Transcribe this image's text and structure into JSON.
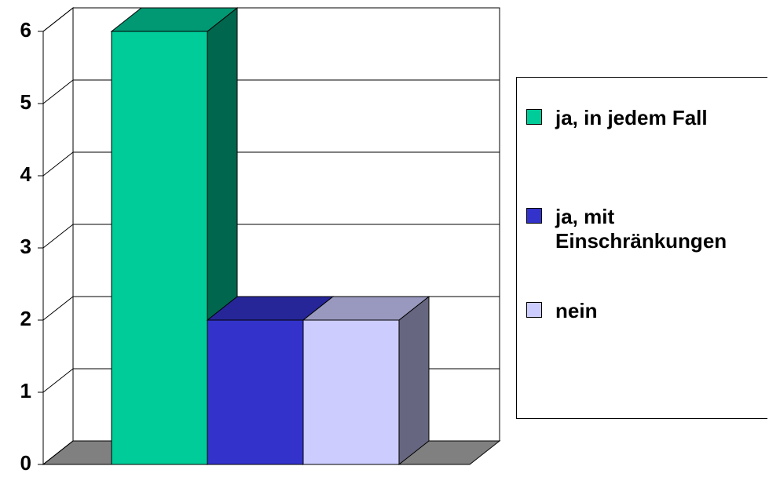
{
  "chart_data": {
    "type": "bar3d",
    "series": [
      {
        "name": "ja, in jedem Fall",
        "color": "#00cc99",
        "values": [
          6
        ]
      },
      {
        "name": "ja, mit Einschränkungen",
        "color": "#3333cc",
        "values": [
          2
        ]
      },
      {
        "name": "nein",
        "color": "#ccccff",
        "values": [
          2
        ]
      }
    ],
    "ylim": [
      0,
      6
    ],
    "yticks": [
      0,
      1,
      2,
      3,
      4,
      5,
      6
    ],
    "grid": true,
    "legend": "right"
  }
}
